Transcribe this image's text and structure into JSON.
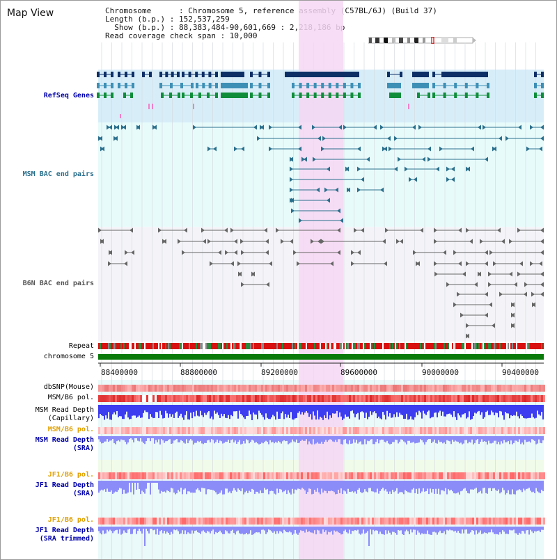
{
  "view_title": "Map View",
  "info": {
    "line1": "Chromosome      : Chromosome 5, reference assembly (C57BL/6J) (Build 37)",
    "line2": "Length (b.p.) : 152,537,259",
    "line3": "  Show (b.p.) : 88,383,484-90,601,669 : 2,218,186 bp",
    "line4": "Read coverage check span : 10,000"
  },
  "tracks": {
    "refseq": "RefSeq Genes",
    "msm_bac": "MSM BAC end pairs",
    "b6n_bac": "B6N BAC end pairs",
    "repeat": "Repeat",
    "chromosome": "chromosome 5",
    "dbsnp": "dbSNP(Mouse)",
    "msm_b6_pol_1": "MSM/B6 pol.",
    "msm_depth_cap_1": "MSM Read Depth",
    "msm_depth_cap_2": "(Capillary)",
    "msm_b6_pol_2": "MSM/B6 pol.",
    "msm_depth_sra_1": "MSM Read Depth",
    "msm_depth_sra_2": "(SRA)",
    "jf1_b6_pol_1": "JF1/B6 pol.",
    "jf1_depth_sra_1": "JF1 Read Depth",
    "jf1_depth_sra_2": "(SRA)",
    "jf1_b6_pol_2": "JF1/B6 pol.",
    "jf1_depth_trim_1": "JF1 Read Depth",
    "jf1_depth_trim_2": "(SRA trimmed)"
  },
  "ruler_ticks": [
    "88400000",
    "88800000",
    "89200000",
    "89600000",
    "90000000",
    "90400000"
  ],
  "colors": {
    "refseq_bg": "#d7eef9",
    "msm_bg": "#e8fbfb",
    "b6n_bg": "#f4f4f8",
    "highlight": "#f6d7f3",
    "gene_dark": "#0e2f66",
    "gene_mid": "#3d8fb5",
    "gene_green": "#0f8d3a",
    "msm_pair": "#2a6f8c",
    "b6n_pair": "#666666",
    "chromosome": "#0a7a0a",
    "label_blue": "#0000aa",
    "label_orange": "#e0a000",
    "depth_blue": "#3c3cf0",
    "depth_light": "#8c8cf8"
  }
}
